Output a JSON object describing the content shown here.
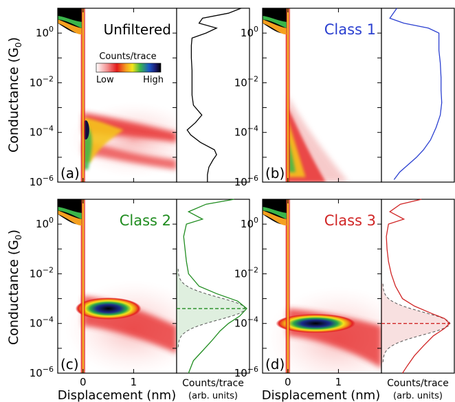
{
  "figure": {
    "y_axis_label": "Conductance (G",
    "y_axis_label_sub": "0",
    "y_axis_label_end": ")",
    "x_axis_label": "Displacement (nm)",
    "hist_axis_label_line1": "Counts/trace",
    "hist_axis_label_line2": "(arb. units)",
    "colorbar": {
      "title": "Counts/trace",
      "low_label": "Low",
      "high_label": "High"
    },
    "colors": {
      "unfiltered": "#000000",
      "class1": "#2a3fd0",
      "class2": "#1f8c1f",
      "class3": "#d02525"
    }
  },
  "chart_data": [
    {
      "type": "heatmap",
      "panel_label": "(a)",
      "title": "Unfiltered",
      "title_color": "#000000",
      "xlim": [
        -0.5,
        1.85
      ],
      "ylim_log10": [
        -6,
        1
      ],
      "x_ticks": [
        0,
        1
      ],
      "y_ticks": [
        "10^0",
        "10^-2",
        "10^-4",
        "10^-6"
      ],
      "histogram": {
        "color": "#000000",
        "log10_conductance": [
          1.0,
          0.8,
          0.6,
          0.4,
          0.2,
          0.0,
          -0.2,
          -0.5,
          -1.0,
          -1.5,
          -2.0,
          -2.5,
          -2.9,
          -3.3,
          -3.6,
          -3.9,
          -4.1,
          -4.4,
          -4.7,
          -4.9,
          -5.1,
          -5.4,
          -5.7,
          -6.0
        ],
        "counts": [
          0.9,
          0.72,
          0.35,
          0.3,
          0.55,
          0.4,
          0.2,
          0.19,
          0.19,
          0.2,
          0.2,
          0.2,
          0.22,
          0.34,
          0.25,
          0.13,
          0.18,
          0.32,
          0.52,
          0.55,
          0.5,
          0.44,
          0.42,
          0.42
        ]
      }
    },
    {
      "type": "heatmap",
      "panel_label": "(b)",
      "title": "Class 1",
      "title_color": "#2a3fd0",
      "xlim": [
        -0.5,
        1.85
      ],
      "ylim_log10": [
        -6,
        1
      ],
      "x_ticks": [
        0,
        1
      ],
      "y_ticks": [
        "10^0",
        "10^-2",
        "10^-4",
        "10^-6"
      ],
      "histogram": {
        "color": "#2a3fd0",
        "log10_conductance": [
          1.0,
          0.8,
          0.6,
          0.4,
          0.2,
          0.0,
          -0.3,
          -0.7,
          -1.2,
          -1.8,
          -2.3,
          -2.8,
          -3.3,
          -3.8,
          -4.3,
          -4.7,
          -5.0,
          -5.3,
          -5.6,
          -5.9
        ],
        "counts": [
          0.2,
          0.15,
          0.1,
          0.3,
          0.65,
          0.8,
          0.8,
          0.8,
          0.82,
          0.83,
          0.83,
          0.84,
          0.82,
          0.76,
          0.68,
          0.58,
          0.48,
          0.36,
          0.24,
          0.16
        ]
      }
    },
    {
      "type": "heatmap",
      "panel_label": "(c)",
      "title": "Class 2",
      "title_color": "#1f8c1f",
      "xlim": [
        -0.5,
        1.85
      ],
      "ylim_log10": [
        -6,
        1
      ],
      "x_ticks": [
        0,
        1
      ],
      "x_tick_labels": [
        "0",
        "1"
      ],
      "y_ticks": [
        "10^0",
        "10^-2",
        "10^-4",
        "10^-6"
      ],
      "histogram": {
        "color": "#1f8c1f",
        "peak_log10": -3.4,
        "log10_conductance": [
          1.0,
          0.8,
          0.5,
          0.2,
          0.0,
          -0.5,
          -1.0,
          -1.5,
          -2.0,
          -2.5,
          -2.8,
          -3.1,
          -3.4,
          -3.7,
          -4.0,
          -4.3,
          -4.7,
          -5.1,
          -5.5,
          -6.0
        ],
        "counts": [
          0.8,
          0.4,
          0.15,
          0.35,
          0.12,
          0.08,
          0.1,
          0.12,
          0.15,
          0.3,
          0.55,
          0.85,
          0.98,
          0.88,
          0.72,
          0.6,
          0.48,
          0.35,
          0.22,
          0.15
        ]
      }
    },
    {
      "type": "heatmap",
      "panel_label": "(d)",
      "title": "Class 3",
      "title_color": "#d02525",
      "xlim": [
        -0.5,
        1.85
      ],
      "ylim_log10": [
        -6,
        1
      ],
      "x_ticks": [
        0,
        1
      ],
      "x_tick_labels": [
        "0",
        "1"
      ],
      "y_ticks": [
        "10^0",
        "10^-2",
        "10^-4",
        "10^-6"
      ],
      "histogram": {
        "color": "#d02525",
        "peak_log10": -4.0,
        "log10_conductance": [
          1.0,
          0.8,
          0.5,
          0.2,
          0.0,
          -0.5,
          -1.0,
          -1.5,
          -2.0,
          -2.5,
          -3.0,
          -3.3,
          -3.6,
          -3.8,
          -4.0,
          -4.2,
          -4.5,
          -4.9,
          -5.3,
          -5.7,
          -6.0
        ],
        "counts": [
          0.55,
          0.25,
          0.1,
          0.3,
          0.08,
          0.05,
          0.06,
          0.08,
          0.12,
          0.18,
          0.28,
          0.45,
          0.7,
          0.88,
          0.95,
          0.88,
          0.72,
          0.58,
          0.45,
          0.35,
          0.28
        ]
      }
    }
  ]
}
